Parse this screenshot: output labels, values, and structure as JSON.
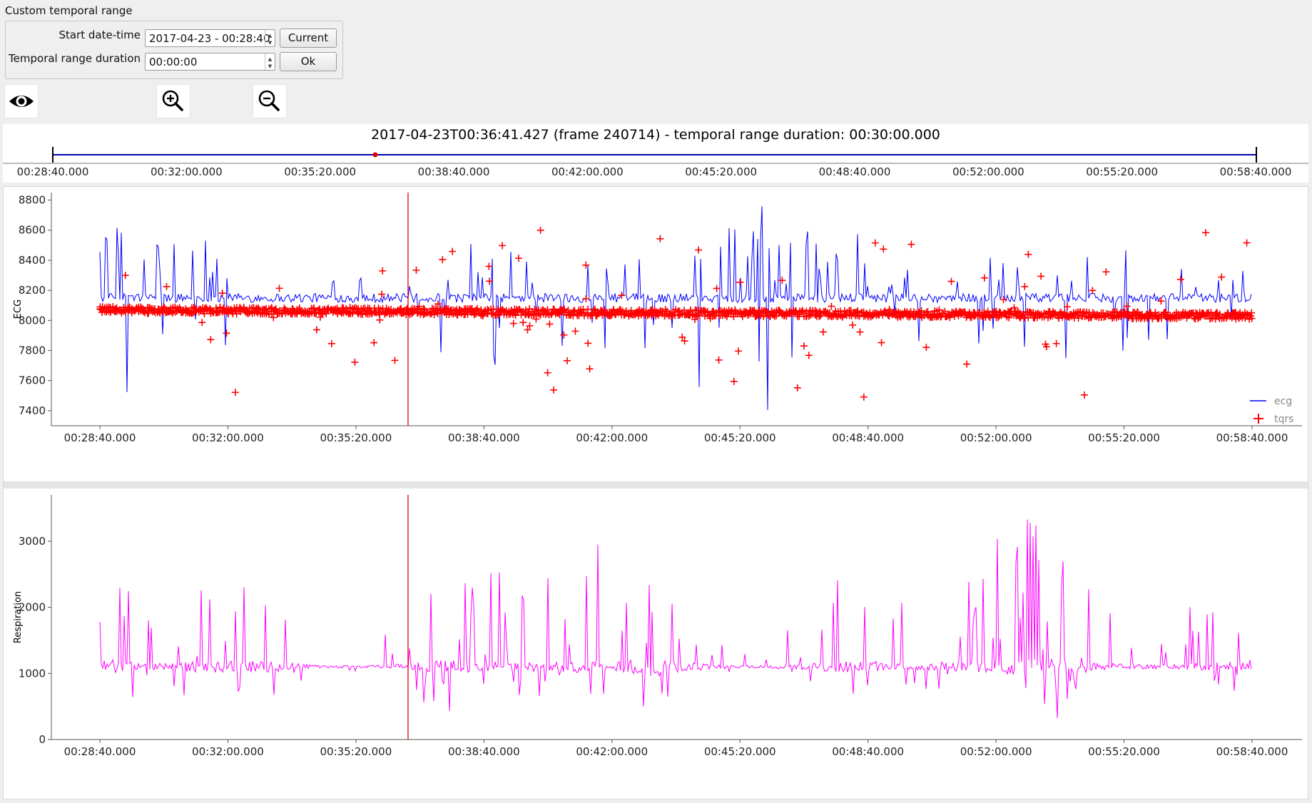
{
  "custom_range": {
    "title": "Custom temporal range",
    "start_label": "Start date-time",
    "start_value": "2017-04-23 - 00:28:40",
    "duration_label": "Temporal range duration",
    "duration_value": "00:00:00",
    "current_button": "Current",
    "ok_button": "Ok"
  },
  "toolbar": {
    "icons": [
      "eye-icon",
      "zoom-in-icon",
      "zoom-out-icon"
    ]
  },
  "timeline": {
    "title": "2017-04-23T00:36:41.427 (frame 240714) - temporal range duration: 00:30:00.000",
    "ticks": [
      "00:28:40.000",
      "00:32:00.000",
      "00:35:20.000",
      "00:38:40.000",
      "00:42:00.000",
      "00:45:20.000",
      "00:48:40.000",
      "00:52:00.000",
      "00:55:20.000",
      "00:58:40.000"
    ],
    "cursor_fraction": 0.2679,
    "line_color": "#0000b4",
    "cursor_color": "#e00000"
  },
  "chart_data": [
    {
      "type": "line",
      "ylabel": "ECG",
      "ylim": [
        7300,
        8850
      ],
      "yticks": [
        7400,
        7600,
        7800,
        8000,
        8200,
        8400,
        8600,
        8800
      ],
      "xticks": [
        "00:28:40.000",
        "00:32:00.000",
        "00:35:20.000",
        "00:38:40.000",
        "00:42:00.000",
        "00:45:20.000",
        "00:48:40.000",
        "00:52:00.000",
        "00:55:20.000",
        "00:58:40.000"
      ],
      "x_range": [
        "00:28:40.000",
        "00:58:40.000"
      ],
      "cursor_x": "00:36:41.427",
      "legend": "top-right",
      "series": [
        {
          "name": "ecg",
          "color": "#0000ff",
          "style": "line",
          "baseline": 8150,
          "spike_max": 8780,
          "spike_min": 7380
        },
        {
          "name": "tqrs",
          "color": "#ff0000",
          "style": "marker-plus",
          "baseline": 8050,
          "max": 8650,
          "min": 7370
        }
      ]
    },
    {
      "type": "line",
      "ylabel": "Respiration",
      "ylim": [
        0,
        3700
      ],
      "yticks": [
        0,
        1000,
        2000,
        3000
      ],
      "xticks": [
        "00:28:40.000",
        "00:32:00.000",
        "00:35:20.000",
        "00:38:40.000",
        "00:42:00.000",
        "00:45:20.000",
        "00:48:40.000",
        "00:52:00.000",
        "00:55:20.000",
        "00:58:40.000"
      ],
      "x_range": [
        "00:28:40.000",
        "00:58:40.000"
      ],
      "cursor_x": "00:36:41.427",
      "series": [
        {
          "color": "#ff00ff",
          "style": "line",
          "baseline": 1100,
          "max": 3560,
          "min": 180
        }
      ]
    }
  ]
}
